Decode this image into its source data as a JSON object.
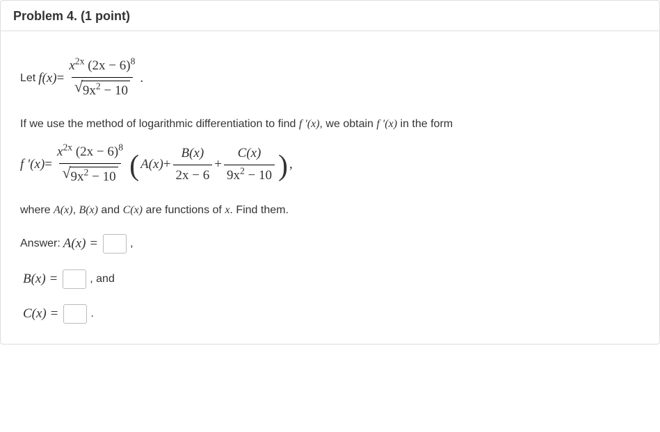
{
  "header": {
    "title": "Problem 4.",
    "points": "(1 point)"
  },
  "line_let": {
    "prefix": "Let ",
    "fx": "f(x)",
    "eq": " = ",
    "numerator_left": "x",
    "numerator_exp1": "2x",
    "numerator_paren": " (2x − 6)",
    "numerator_exp2": "8",
    "den_sqrt_inner1": "9x",
    "den_sqrt_exp": "2",
    "den_sqrt_inner2": " − 10",
    "period": "."
  },
  "line_if": "If we use the method of logarithmic differentiation to find f ′(x), we obtain f ′(x) in the form",
  "line_fprime": {
    "fprime": "f ′(x)",
    "eq": " = ",
    "Ax": "A(x)",
    "plus": " + ",
    "Bx": "B(x)",
    "Bden": "2x − 6",
    "Cx": "C(x)",
    "Cden1": "9x",
    "Cden_exp": "2",
    "Cden2": " − 10",
    "comma": ","
  },
  "line_where": "where A(x), B(x) and C(x) are functions of x. Find them.",
  "answers": {
    "label_answer": "Answer: ",
    "Ax_lhs": "A(x) = ",
    "Bx_lhs": "B(x) = ",
    "Cx_lhs": "C(x) = ",
    "comma": ",",
    "and": ", and",
    "period": "."
  }
}
